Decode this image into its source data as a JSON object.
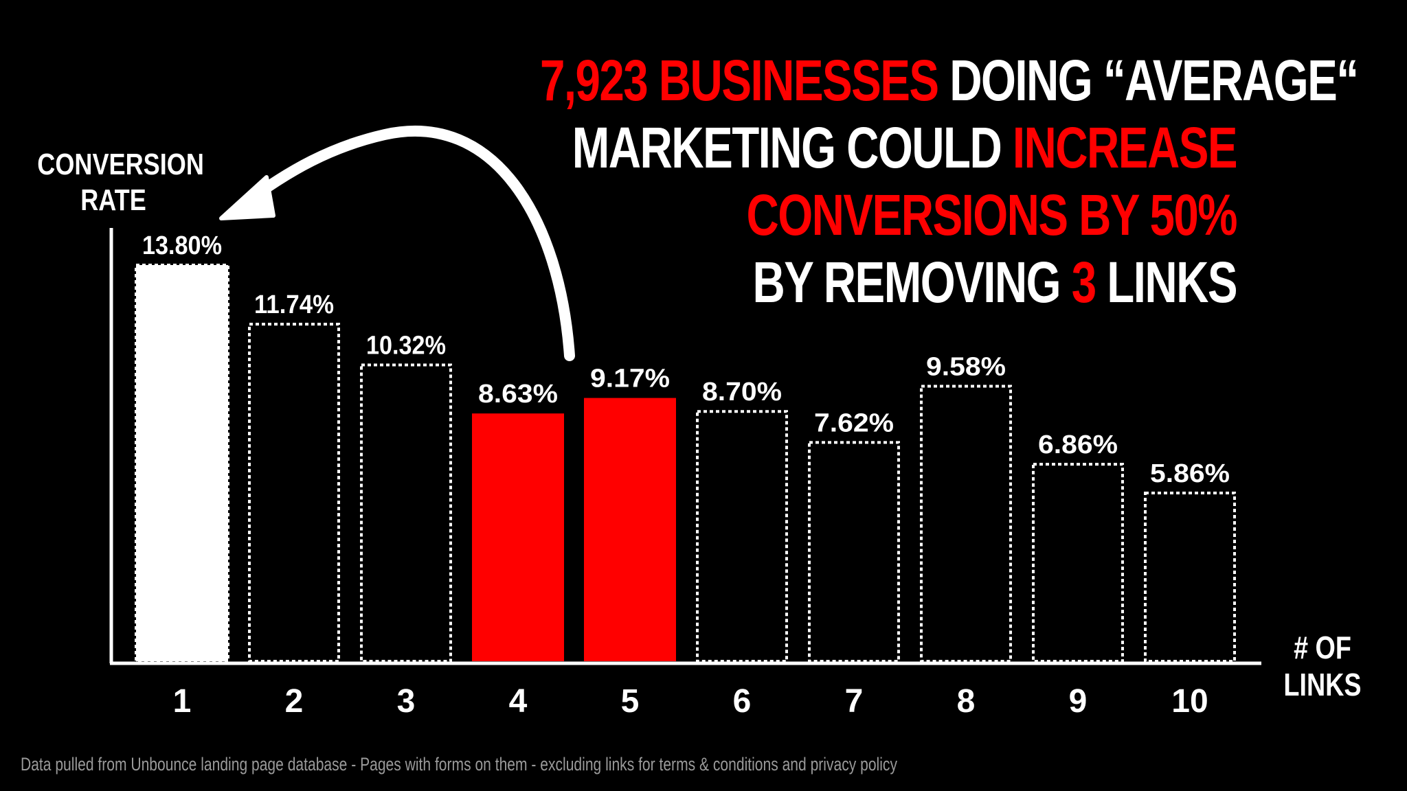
{
  "headline": {
    "line1": [
      {
        "text": "7,923 BUSINESSES",
        "color": "#ff0000"
      },
      {
        "text": " DOING “AVERAGE“",
        "color": "#ffffff"
      }
    ],
    "line2": [
      {
        "text": "MARKETING COULD ",
        "color": "#ffffff"
      },
      {
        "text": "INCREASE",
        "color": "#ff0000"
      }
    ],
    "line3": [
      {
        "text": "CONVERSIONS BY 50%",
        "color": "#ff0000"
      }
    ],
    "line4": [
      {
        "text": "BY REMOVING ",
        "color": "#ffffff"
      },
      {
        "text": "3",
        "color": "#ff0000"
      },
      {
        "text": " LINKS",
        "color": "#ffffff"
      }
    ]
  },
  "axes": {
    "ylabel_line1": "CONVERSION",
    "ylabel_line2": "RATE",
    "xlabel_line1": "# OF",
    "xlabel_line2": "LINKS"
  },
  "footnote": "Data pulled from Unbounce landing page database - Pages with forms on them - excluding links for terms & conditions and privacy policy",
  "colors": {
    "background": "#000000",
    "highlight_red": "#ff0000",
    "text_white": "#ffffff",
    "solid_bar_white": "#ffffff",
    "outline_bar": "#ffffff",
    "footnote_gray": "#9a9a9a"
  },
  "chart_data": {
    "type": "bar",
    "categories": [
      "1",
      "2",
      "3",
      "4",
      "5",
      "6",
      "7",
      "8",
      "9",
      "10"
    ],
    "values": [
      13.8,
      11.74,
      10.32,
      8.63,
      9.17,
      8.7,
      7.62,
      9.58,
      6.86,
      5.86
    ],
    "data_labels": [
      "13.80%",
      "11.74%",
      "10.32%",
      "8.63%",
      "9.17%",
      "8.70%",
      "7.62%",
      "9.58%",
      "6.86%",
      "5.86%"
    ],
    "bar_styles": [
      "solid-white",
      "dotted-outline",
      "dotted-outline",
      "solid-red",
      "solid-red",
      "dotted-outline",
      "dotted-outline",
      "dotted-outline",
      "dotted-outline",
      "dotted-outline"
    ],
    "ylim": [
      0,
      14.5
    ],
    "grid": false,
    "annotation": "curved arrow from bar 5 pointing to bar 1"
  }
}
